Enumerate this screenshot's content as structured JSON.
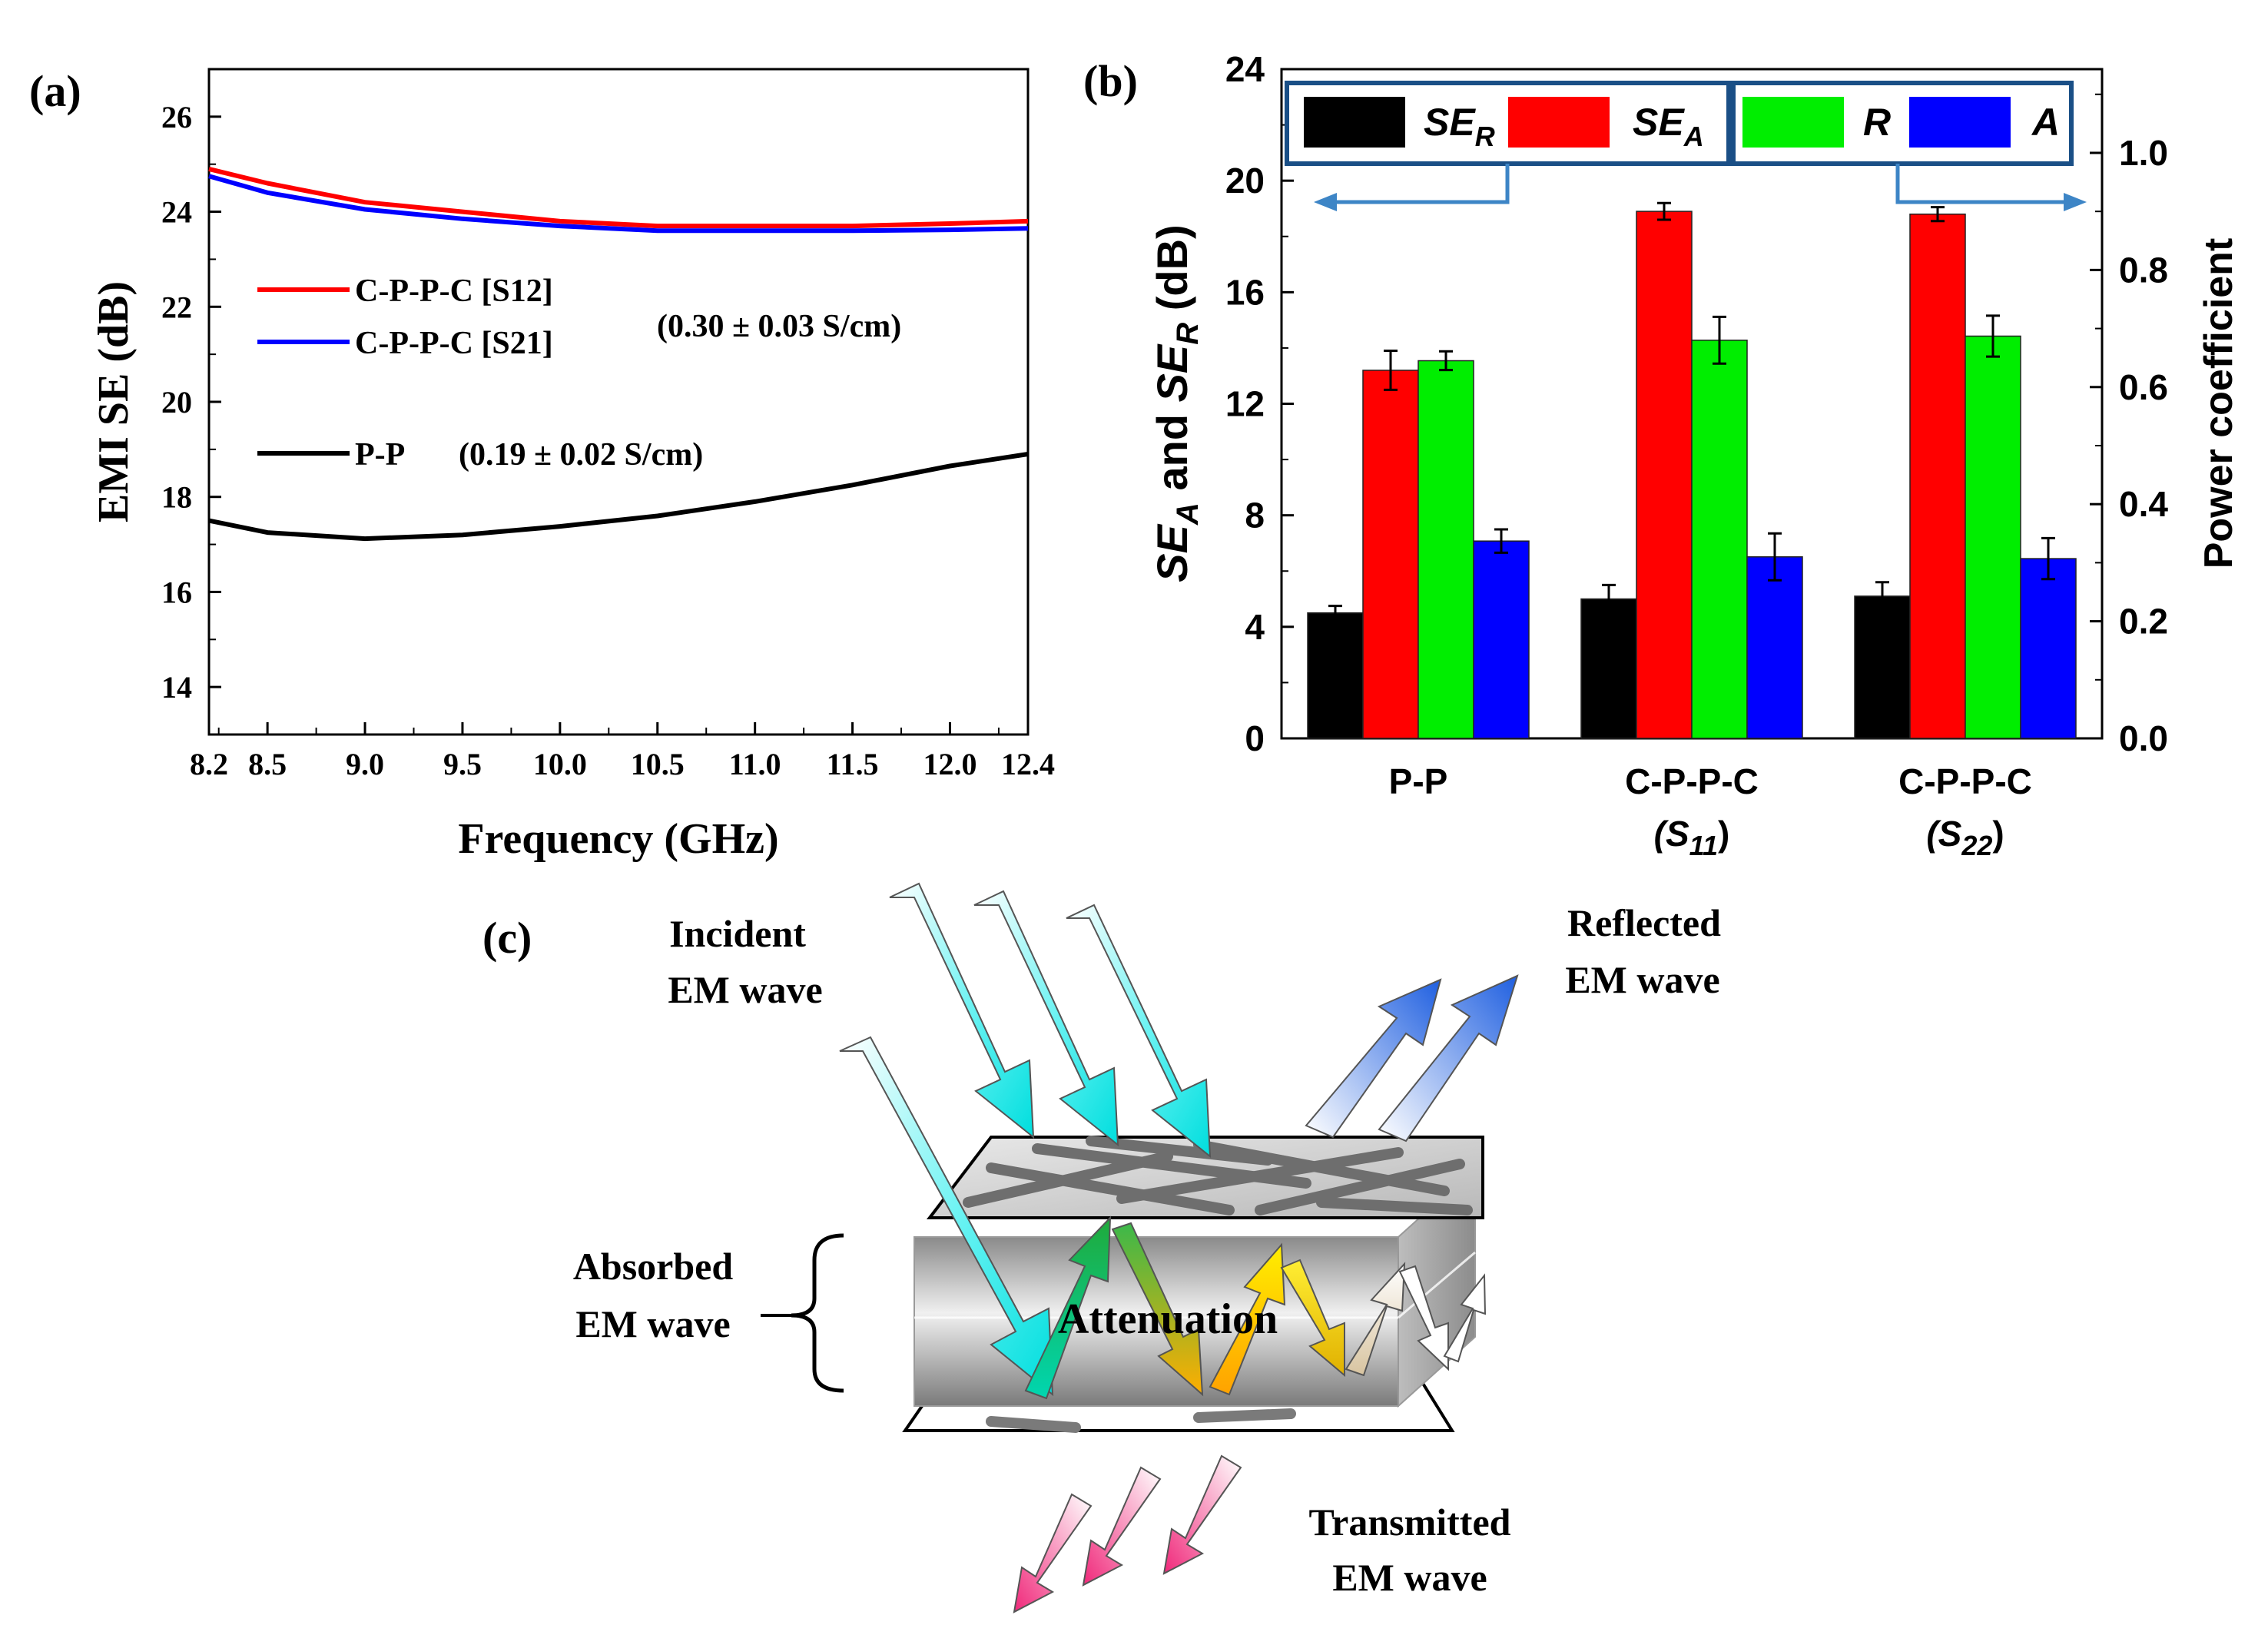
{
  "panels": {
    "a": "(a)",
    "b": "(b)",
    "c": "(c)"
  },
  "chart_data": [
    {
      "type": "line",
      "panel": "(a)",
      "xlabel": "Frequency (GHz)",
      "ylabel": "EMI SE (dB)",
      "xlim": [
        8.2,
        12.4
      ],
      "ylim": [
        13,
        27
      ],
      "xticks": [
        8.2,
        8.5,
        9.0,
        9.5,
        10.0,
        10.5,
        11.0,
        11.5,
        12.0,
        12.4
      ],
      "xtick_labels": [
        "8.2",
        "8.5",
        "9.0",
        "9.5",
        "10.0",
        "10.5",
        "11.0",
        "11.5",
        "12.0",
        "12.4"
      ],
      "yticks": [
        14,
        16,
        18,
        20,
        22,
        24,
        26
      ],
      "ytick_labels": [
        "14",
        "16",
        "18",
        "20",
        "22",
        "24",
        "26"
      ],
      "series": [
        {
          "name": "C-P-P-C [S12]",
          "color": "#ff0000",
          "x": [
            8.2,
            8.5,
            9.0,
            9.5,
            10.0,
            10.5,
            11.0,
            11.5,
            12.0,
            12.4
          ],
          "y": [
            24.9,
            24.6,
            24.2,
            24.0,
            23.8,
            23.7,
            23.7,
            23.7,
            23.75,
            23.8
          ]
        },
        {
          "name": "C-P-P-C [S21]",
          "color": "#0000ff",
          "x": [
            8.2,
            8.5,
            9.0,
            9.5,
            10.0,
            10.5,
            11.0,
            11.5,
            12.0,
            12.4
          ],
          "y": [
            24.75,
            24.4,
            24.05,
            23.85,
            23.7,
            23.6,
            23.6,
            23.6,
            23.62,
            23.65
          ]
        },
        {
          "name": "P-P",
          "color": "#000000",
          "x": [
            8.2,
            8.5,
            9.0,
            9.5,
            10.0,
            10.5,
            11.0,
            11.5,
            12.0,
            12.4
          ],
          "y": [
            17.5,
            17.25,
            17.12,
            17.2,
            17.38,
            17.6,
            17.9,
            18.25,
            18.65,
            18.9
          ]
        }
      ],
      "annotations": [
        "(0.30 ± 0.03 S/cm)",
        "(0.19 ± 0.02 S/cm)"
      ]
    },
    {
      "type": "bar",
      "panel": "(b)",
      "categories": [
        "P-P",
        "C-P-P-C\n(S11)",
        "C-P-P-C\n(S22)"
      ],
      "category_line1": [
        "P-P",
        "C-P-P-C",
        "C-P-P-C"
      ],
      "category_line2": [
        "",
        "(S",
        "(S"
      ],
      "category_sub": [
        "",
        "11",
        "22"
      ],
      "ylabel_left": "SE_A and SE_R (dB)",
      "ylabel_left_parts": [
        "SE",
        "A",
        " and ",
        "SE",
        "R",
        " (dB)"
      ],
      "ylabel_right": "Power coefficient",
      "ylim_left": [
        0,
        24
      ],
      "ylim_right": [
        0,
        1.143
      ],
      "yticks_left": [
        "0",
        "4",
        "8",
        "12",
        "16",
        "20",
        "24"
      ],
      "yticks_right": [
        "0.0",
        "0.2",
        "0.4",
        "0.6",
        "0.8",
        "1.0"
      ],
      "series": [
        {
          "name": "SE_R",
          "label": "SE",
          "sub": "R",
          "axis": "left",
          "color": "#000000",
          "values": [
            4.5,
            5.0,
            5.1
          ],
          "errors": [
            0.25,
            0.5,
            0.5
          ]
        },
        {
          "name": "SE_A",
          "label": "SE",
          "sub": "A",
          "axis": "left",
          "color": "#ff0000",
          "values": [
            13.2,
            18.9,
            18.8
          ],
          "errors": [
            0.7,
            0.3,
            0.25
          ]
        },
        {
          "name": "R",
          "label": "R",
          "sub": "",
          "axis": "right",
          "color": "#00ee00",
          "values": [
            0.645,
            0.68,
            0.687
          ],
          "errors": [
            0.016,
            0.04,
            0.035
          ]
        },
        {
          "name": "A",
          "label": "A",
          "sub": "",
          "axis": "right",
          "color": "#0000ff",
          "values": [
            0.337,
            0.31,
            0.307
          ],
          "errors": [
            0.02,
            0.04,
            0.035
          ]
        }
      ]
    }
  ],
  "diagram": {
    "incident": [
      "Incident",
      "EM wave"
    ],
    "reflected": [
      "Reflected",
      "EM wave"
    ],
    "absorbed": [
      "Absorbed",
      "EM wave"
    ],
    "transmitted": [
      "Transmitted",
      "EM wave"
    ],
    "center": "Attenuation"
  }
}
